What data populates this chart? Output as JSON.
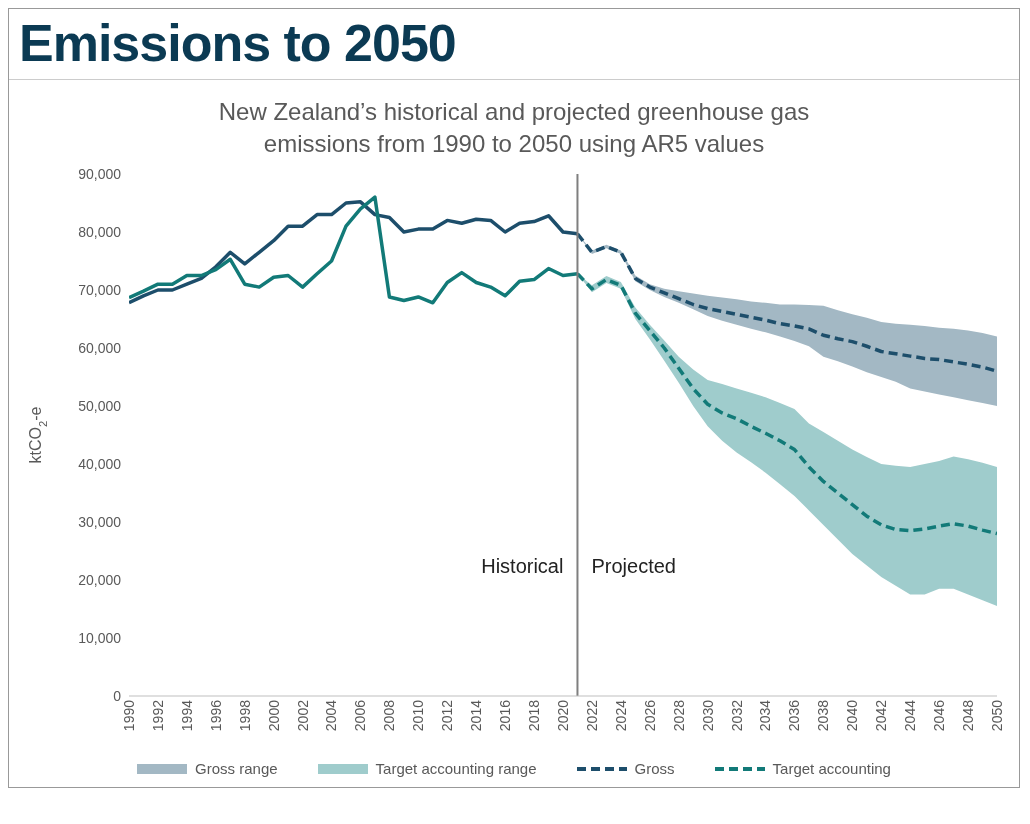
{
  "chart_data": {
    "type": "line",
    "title": "Emissions to 2050",
    "subtitle": "New Zealand’s historical and projected greenhouse gas emissions from 1990 to 2050 using AR5 values",
    "ylabel": "ktCO$_{2}$-e",
    "x": [
      1990,
      1991,
      1992,
      1993,
      1994,
      1995,
      1996,
      1997,
      1998,
      1999,
      2000,
      2001,
      2002,
      2003,
      2004,
      2005,
      2006,
      2007,
      2008,
      2009,
      2010,
      2011,
      2012,
      2013,
      2014,
      2015,
      2016,
      2017,
      2018,
      2019,
      2020,
      2021,
      2022,
      2023,
      2024,
      2025,
      2026,
      2027,
      2028,
      2029,
      2030,
      2031,
      2032,
      2033,
      2034,
      2035,
      2036,
      2037,
      2038,
      2039,
      2040,
      2041,
      2042,
      2043,
      2044,
      2045,
      2046,
      2047,
      2048,
      2049,
      2050
    ],
    "xlim": [
      1990,
      2050
    ],
    "xticks": [
      1990,
      1992,
      1994,
      1996,
      1998,
      2000,
      2002,
      2004,
      2006,
      2008,
      2010,
      2012,
      2014,
      2016,
      2018,
      2020,
      2022,
      2024,
      2026,
      2028,
      2030,
      2032,
      2034,
      2036,
      2038,
      2040,
      2042,
      2044,
      2046,
      2048,
      2050
    ],
    "ylim": [
      0,
      90000
    ],
    "yticks": [
      0,
      {
        "value": 10000,
        "label": "10,000"
      },
      {
        "value": 20000,
        "label": "20,000"
      },
      {
        "value": 30000,
        "label": "30,000"
      },
      {
        "value": 40000,
        "label": "40,000"
      },
      {
        "value": 50000,
        "label": "50,000"
      },
      {
        "value": 60000,
        "label": "60,000"
      },
      {
        "value": 70000,
        "label": "70,000"
      },
      {
        "value": 80000,
        "label": "80,000"
      },
      {
        "value": 90000,
        "label": "90,000"
      }
    ],
    "series": [
      {
        "name": "Gross range",
        "type": "area",
        "color": "#a3b8c4",
        "lower": [
          null,
          null,
          null,
          null,
          null,
          null,
          null,
          null,
          null,
          null,
          null,
          null,
          null,
          null,
          null,
          null,
          null,
          null,
          null,
          null,
          null,
          null,
          null,
          null,
          null,
          null,
          null,
          null,
          null,
          null,
          null,
          79700,
          76200,
          77200,
          76200,
          71500,
          70000,
          68800,
          67800,
          66700,
          65500,
          64700,
          64000,
          63300,
          62700,
          62000,
          61200,
          60300,
          58500,
          57700,
          56800,
          55800,
          55000,
          54200,
          53000,
          52500,
          52000,
          51500,
          51000,
          50500,
          50000
        ],
        "values": [
          null,
          null,
          null,
          null,
          null,
          null,
          null,
          null,
          null,
          null,
          null,
          null,
          null,
          null,
          null,
          null,
          null,
          null,
          null,
          null,
          null,
          null,
          null,
          null,
          null,
          null,
          null,
          null,
          null,
          null,
          null,
          null,
          null,
          null,
          null,
          null,
          null,
          null,
          null,
          null,
          null,
          null,
          null,
          null,
          null,
          null,
          null,
          null,
          null,
          null,
          null,
          null,
          null,
          null,
          null,
          null,
          null,
          null,
          null,
          null,
          null
        ],
        "upper": [
          null,
          null,
          null,
          null,
          null,
          null,
          null,
          null,
          null,
          null,
          null,
          null,
          null,
          null,
          null,
          null,
          null,
          null,
          null,
          null,
          null,
          null,
          null,
          null,
          null,
          null,
          null,
          null,
          null,
          null,
          null,
          79700,
          76800,
          77800,
          76800,
          72500,
          71000,
          70200,
          69800,
          69400,
          69000,
          68700,
          68400,
          68000,
          67800,
          67500,
          67500,
          67400,
          67300,
          66500,
          65800,
          65200,
          64500,
          64200,
          64000,
          63800,
          63500,
          63300,
          63000,
          62600,
          62000
        ]
      },
      {
        "name": "Target accounting range",
        "type": "area",
        "color": "#9fcccc",
        "lower": [
          null,
          null,
          null,
          null,
          null,
          null,
          null,
          null,
          null,
          null,
          null,
          null,
          null,
          null,
          null,
          null,
          null,
          null,
          null,
          null,
          null,
          null,
          null,
          null,
          null,
          null,
          null,
          null,
          null,
          null,
          null,
          72800,
          69600,
          71200,
          70200,
          65000,
          61500,
          57800,
          54000,
          50000,
          46500,
          44000,
          42000,
          40300,
          38500,
          36500,
          34500,
          32000,
          29500,
          27000,
          24500,
          22500,
          20500,
          19000,
          17500,
          17500,
          18500,
          18500,
          17500,
          16500,
          15500
        ],
        "values": [
          null,
          null,
          null,
          null,
          null,
          null,
          null,
          null,
          null,
          null,
          null,
          null,
          null,
          null,
          null,
          null,
          null,
          null,
          null,
          null,
          null,
          null,
          null,
          null,
          null,
          null,
          null,
          null,
          null,
          null,
          null,
          null,
          null,
          null,
          null,
          null,
          null,
          null,
          null,
          null,
          null,
          null,
          null,
          null,
          null,
          null,
          null,
          null,
          null,
          null,
          null,
          null,
          null,
          null,
          null,
          null,
          null,
          null,
          null,
          null,
          null
        ],
        "upper": [
          null,
          null,
          null,
          null,
          null,
          null,
          null,
          null,
          null,
          null,
          null,
          null,
          null,
          null,
          null,
          null,
          null,
          null,
          null,
          null,
          null,
          null,
          null,
          null,
          null,
          null,
          null,
          null,
          null,
          null,
          null,
          72800,
          70800,
          72400,
          71400,
          67000,
          64000,
          61300,
          58500,
          56300,
          54500,
          53800,
          53000,
          52300,
          51500,
          50500,
          49500,
          47000,
          45500,
          44000,
          42500,
          41200,
          40000,
          39700,
          39500,
          40000,
          40500,
          41300,
          40800,
          40200,
          39500
        ]
      },
      {
        "color": "#1d4e6b",
        "line_style": "solid",
        "values": [
          67800,
          69000,
          70000,
          70000,
          71000,
          72000,
          74000,
          76500,
          74500,
          76500,
          78500,
          81000,
          81000,
          83000,
          83000,
          85000,
          85200,
          83000,
          82500,
          80000,
          80500,
          80500,
          82000,
          81500,
          82200,
          82000,
          80000,
          81500,
          81800,
          82800,
          80000,
          79700,
          null,
          null,
          null,
          null,
          null,
          null,
          null,
          null,
          null,
          null,
          null,
          null,
          null,
          null,
          null,
          null,
          null,
          null,
          null,
          null,
          null,
          null,
          null,
          null,
          null,
          null,
          null,
          null,
          null
        ]
      },
      {
        "color": "#127a78",
        "line_style": "solid",
        "values": [
          68700,
          69800,
          71000,
          71000,
          72500,
          72500,
          73500,
          75300,
          71000,
          70500,
          72200,
          72500,
          70500,
          72800,
          75000,
          81000,
          84000,
          86000,
          68800,
          68200,
          68800,
          67800,
          71300,
          73000,
          71300,
          70500,
          69000,
          71500,
          71800,
          73700,
          72500,
          72800,
          null,
          null,
          null,
          null,
          null,
          null,
          null,
          null,
          null,
          null,
          null,
          null,
          null,
          null,
          null,
          null,
          null,
          null,
          null,
          null,
          null,
          null,
          null,
          null,
          null,
          null,
          null,
          null,
          null
        ]
      },
      {
        "name": "Gross",
        "color": "#1d4e6b",
        "line_style": "dashed",
        "values": [
          null,
          null,
          null,
          null,
          null,
          null,
          null,
          null,
          null,
          null,
          null,
          null,
          null,
          null,
          null,
          null,
          null,
          null,
          null,
          null,
          null,
          null,
          null,
          null,
          null,
          null,
          null,
          null,
          null,
          null,
          null,
          79700,
          76500,
          77500,
          76500,
          72000,
          70500,
          69500,
          68500,
          67500,
          66800,
          66300,
          65800,
          65300,
          64800,
          64200,
          63800,
          63300,
          62200,
          61600,
          61100,
          60300,
          59400,
          59000,
          58600,
          58200,
          58000,
          57600,
          57200,
          56700,
          56000
        ]
      },
      {
        "name": "Target accounting",
        "color": "#127a78",
        "line_style": "dashed",
        "values": [
          null,
          null,
          null,
          null,
          null,
          null,
          null,
          null,
          null,
          null,
          null,
          null,
          null,
          null,
          null,
          null,
          null,
          null,
          null,
          null,
          null,
          null,
          null,
          null,
          null,
          null,
          null,
          null,
          null,
          null,
          null,
          72800,
          70200,
          71800,
          70800,
          66000,
          63000,
          60000,
          56500,
          53000,
          50300,
          48800,
          47800,
          46500,
          45300,
          44000,
          42500,
          39500,
          37000,
          35000,
          33000,
          31000,
          29500,
          28700,
          28500,
          28800,
          29300,
          29700,
          29300,
          28600,
          28000
        ]
      }
    ],
    "ref_lines": [
      {
        "axis": "x",
        "value": 2021,
        "color": "#7f7f7f"
      }
    ],
    "annotations": [
      "Historical",
      "Projected"
    ],
    "grid": false,
    "legend": "bottom"
  }
}
